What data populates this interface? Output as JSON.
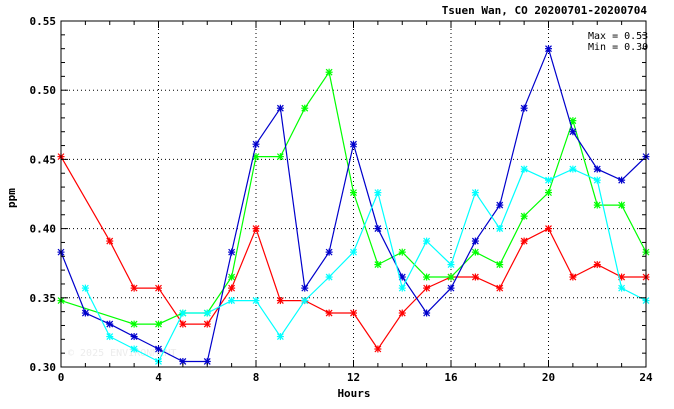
{
  "chart_data": {
    "type": "line",
    "title": "Tsuen Wan, CO 20200701-20200704",
    "xlabel": "Hours",
    "ylabel": "ppm",
    "xlim": [
      0,
      24
    ],
    "ylim": [
      0.3,
      0.55
    ],
    "xticks": [
      0,
      4,
      8,
      12,
      16,
      20,
      24
    ],
    "yticks": [
      0.3,
      0.35,
      0.4,
      0.45,
      0.5,
      0.55
    ],
    "xtick_labels": [
      "0",
      "4",
      "8",
      "12",
      "16",
      "20",
      "24"
    ],
    "ytick_labels": [
      "0.30",
      "0.35",
      "0.40",
      "0.45",
      "0.50",
      "0.55"
    ],
    "grid": true,
    "annotations": {
      "max": "Max = 0.53",
      "min": "Min = 0.30"
    },
    "watermark": "© 2025 ENVIRONMENT",
    "series": [
      {
        "color": "#ff0000",
        "x": [
          0,
          2,
          3,
          4,
          5,
          6,
          7,
          8,
          9,
          10,
          11,
          12,
          13,
          14,
          15,
          16,
          17,
          18,
          19,
          20,
          21,
          22,
          23,
          24
        ],
        "values": [
          0.452,
          0.391,
          0.357,
          0.357,
          0.331,
          0.331,
          0.357,
          0.4,
          0.348,
          0.348,
          0.339,
          0.339,
          0.313,
          0.339,
          0.357,
          0.365,
          0.365,
          0.357,
          0.391,
          0.4,
          0.365,
          0.374,
          0.365,
          0.365
        ]
      },
      {
        "color": "#00ff00",
        "x": [
          0,
          3,
          4,
          5,
          6,
          7,
          8,
          9,
          10,
          11,
          12,
          13,
          14,
          15,
          16,
          17,
          18,
          19,
          20,
          21,
          22,
          23,
          24
        ],
        "values": [
          0.348,
          0.331,
          0.331,
          0.339,
          0.339,
          0.365,
          0.452,
          0.452,
          0.487,
          0.513,
          0.426,
          0.374,
          0.383,
          0.365,
          0.365,
          0.383,
          0.374,
          0.409,
          0.426,
          0.478,
          0.417,
          0.417,
          0.383
        ]
      },
      {
        "color": "#0000cc",
        "x": [
          0,
          1,
          2,
          3,
          4,
          5,
          6,
          7,
          8,
          9,
          10,
          11,
          12,
          13,
          14,
          15,
          16,
          17,
          18,
          19,
          20,
          21,
          22,
          23,
          24
        ],
        "values": [
          0.383,
          0.339,
          0.331,
          0.322,
          0.313,
          0.304,
          0.304,
          0.383,
          0.461,
          0.487,
          0.357,
          0.383,
          0.461,
          0.4,
          0.365,
          0.339,
          0.357,
          0.391,
          0.417,
          0.487,
          0.53,
          0.47,
          0.443,
          0.435,
          0.452
        ]
      },
      {
        "color": "#00ffff",
        "x": [
          1,
          2,
          3,
          4,
          5,
          6,
          7,
          8,
          9,
          10,
          11,
          12,
          13,
          14,
          15,
          16,
          17,
          18,
          19,
          20,
          21,
          22,
          23,
          24
        ],
        "values": [
          0.357,
          0.322,
          0.313,
          0.304,
          0.339,
          0.339,
          0.348,
          0.348,
          0.322,
          0.348,
          0.365,
          0.383,
          0.426,
          0.357,
          0.391,
          0.374,
          0.426,
          0.4,
          0.443,
          0.435,
          0.443,
          0.435,
          0.357,
          0.348
        ]
      }
    ]
  }
}
